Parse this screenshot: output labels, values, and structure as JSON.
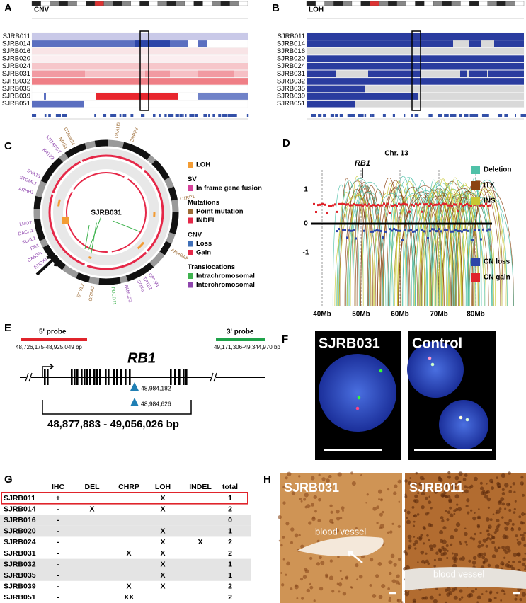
{
  "panels": [
    "A",
    "B",
    "C",
    "D",
    "E",
    "F",
    "G",
    "H"
  ],
  "cnv": {
    "title": "CNV",
    "samples": [
      "SJRB011",
      "SJRB014",
      "SJRB016",
      "SJRB020",
      "SJRB024",
      "SJRB031",
      "SJRB032",
      "SJRB035",
      "SJRB039",
      "SJRB051"
    ]
  },
  "loh": {
    "title": "LOH",
    "samples": [
      "SJRB011",
      "SJRB014",
      "SJRB016",
      "SJRB020",
      "SJRB024",
      "SJRB031",
      "SJRB032",
      "SJRB035",
      "SJRB039",
      "SJRB051"
    ]
  },
  "circos": {
    "sample": "SJRB031",
    "genes": [
      {
        "label": "DNAH5",
        "color": "#9c6b35"
      },
      {
        "label": "ZNRF3",
        "color": "#9c6b35"
      },
      {
        "label": "C1RP1",
        "color": "#9c6b35"
      },
      {
        "label": "ARHGAP",
        "color": "#9c6b35"
      },
      {
        "label": "CPXM1",
        "color": "#8e44ad"
      },
      {
        "label": "TPTE2",
        "color": "#8e44ad"
      },
      {
        "label": "SOX6",
        "color": "#8e44ad"
      },
      {
        "label": "FANCD2",
        "color": "#8e44ad"
      },
      {
        "label": "PDCD11",
        "color": "#3fb34f"
      },
      {
        "label": "OR6A2",
        "color": "#9c6b35"
      },
      {
        "label": "SCYL2",
        "color": "#9c6b35"
      },
      {
        "label": "ENOX1",
        "color": "#8e44ad"
      },
      {
        "label": "CAB39L",
        "color": "#8e44ad"
      },
      {
        "label": "RB1",
        "color": "#8e44ad"
      },
      {
        "label": "KLHL1",
        "color": "#8e44ad"
      },
      {
        "label": "DACH1",
        "color": "#8e44ad"
      },
      {
        "label": "LMO7",
        "color": "#8e44ad"
      },
      {
        "label": "ARHH1",
        "color": "#8e44ad"
      },
      {
        "label": "STOML1",
        "color": "#8e44ad"
      },
      {
        "label": "SNX13",
        "color": "#8e44ad"
      },
      {
        "label": "KRT23",
        "color": "#8e44ad"
      },
      {
        "label": "KRTAP5-7",
        "color": "#8e44ad"
      },
      {
        "label": "NRG1",
        "color": "#9c6b35"
      },
      {
        "label": "C18orf34",
        "color": "#9c6b35"
      }
    ],
    "legend": [
      {
        "heading": "LOH",
        "color": "#f39c34",
        "items": []
      },
      {
        "heading": "SV",
        "items": [
          {
            "label": "In frame gene fusion",
            "color": "#d6429a"
          }
        ]
      },
      {
        "heading": "Mutations",
        "items": [
          {
            "label": "Point mutation",
            "color": "#9c6b35"
          },
          {
            "label": "INDEL",
            "color": "#e52848"
          }
        ]
      },
      {
        "heading": "CNV",
        "items": [
          {
            "label": "Loss",
            "color": "#3f6fb8"
          },
          {
            "label": "Gain",
            "color": "#e52848"
          }
        ]
      },
      {
        "heading": "Translocations",
        "items": [
          {
            "label": "Intrachromosomal",
            "color": "#3fb34f"
          },
          {
            "label": "Interchromosomal",
            "color": "#8e44ad"
          }
        ]
      }
    ]
  },
  "sv_plot": {
    "title": "Chr. 13",
    "gene": "RB1",
    "yticks": [
      "1",
      "0",
      "-1"
    ],
    "xticks": [
      "40Mb",
      "50Mb",
      "60Mb",
      "70Mb",
      "80Mb"
    ],
    "legend_top": [
      {
        "label": "Deletion",
        "color": "#4fc1a8"
      },
      {
        "label": "ITX",
        "color": "#8b4513"
      },
      {
        "label": "INS",
        "color": "#c8c832"
      }
    ],
    "legend_bottom": [
      {
        "label": "CN loss",
        "color": "#2c45a8"
      },
      {
        "label": "CN gain",
        "color": "#e0242b"
      }
    ]
  },
  "rb1_map": {
    "gene": "RB1",
    "probes": [
      {
        "name": "5' probe",
        "range": "48,726,175-48,925,049 bp",
        "color": "#e0242b"
      },
      {
        "name": "3' probe",
        "range": "49,171,306-49,344,970 bp",
        "color": "#1fa34a"
      }
    ],
    "breakpoints": [
      "48,984,182",
      "48,984,626"
    ],
    "span": "48,877,883 - 49,056,026 bp"
  },
  "fish": [
    "SJRB031",
    "Control"
  ],
  "table": {
    "header": [
      "IHC",
      "DEL",
      "CHRP",
      "LOH",
      "INDEL",
      "total"
    ],
    "rows": [
      {
        "sample": "SJRB011",
        "cells": [
          "+",
          null,
          null,
          "X",
          null,
          1
        ]
      },
      {
        "sample": "SJRB014",
        "cells": [
          "-",
          "X",
          null,
          "X",
          null,
          2
        ]
      },
      {
        "sample": "SJRB016",
        "cells": [
          "-",
          null,
          null,
          null,
          null,
          0
        ]
      },
      {
        "sample": "SJRB020",
        "cells": [
          "-",
          null,
          null,
          "X",
          null,
          1
        ]
      },
      {
        "sample": "SJRB024",
        "cells": [
          "-",
          null,
          null,
          "X",
          "X",
          2
        ]
      },
      {
        "sample": "SJRB031",
        "cells": [
          "-",
          null,
          "X",
          "X",
          null,
          2
        ]
      },
      {
        "sample": "SJRB032",
        "cells": [
          "-",
          null,
          null,
          "X",
          null,
          1
        ]
      },
      {
        "sample": "SJRB035",
        "cells": [
          "-",
          null,
          null,
          "X",
          null,
          1
        ]
      },
      {
        "sample": "SJRB039",
        "cells": [
          "-",
          null,
          "X",
          "X",
          null,
          2
        ]
      },
      {
        "sample": "SJRB051",
        "cells": [
          "-",
          null,
          "XX",
          null,
          null,
          2
        ]
      }
    ]
  },
  "ihc": [
    {
      "sample": "SJRB031",
      "annotation": "blood vessel"
    },
    {
      "sample": "SJRB011",
      "annotation": "blood vessel"
    }
  ]
}
